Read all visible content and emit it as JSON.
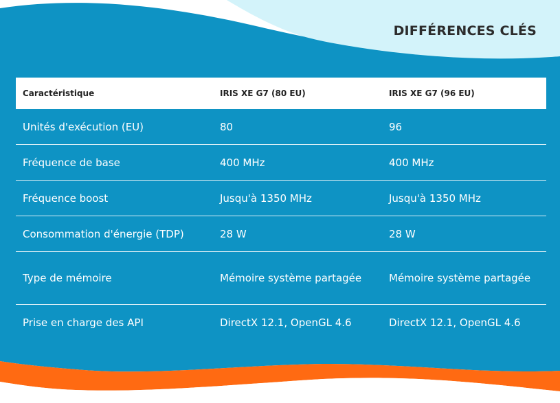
{
  "heading": "DIFFÉRENCES CLÉS",
  "colors": {
    "primary_blue": "#0e93c4",
    "light_blue": "#d3f3fa",
    "orange": "#ff6a12",
    "heading_text": "#2c2c2c"
  },
  "table": {
    "headers": [
      "Caractéristique",
      "IRIS XE G7 (80 EU)",
      "IRIS XE G7 (96 EU)"
    ],
    "rows": [
      [
        "Unités d'exécution (EU)",
        "80",
        "96"
      ],
      [
        "Fréquence de base",
        "400 MHz",
        "400 MHz"
      ],
      [
        "Fréquence boost",
        "Jusqu'à 1350 MHz",
        "Jusqu'à 1350 MHz"
      ],
      [
        "Consommation d'énergie (TDP)",
        "28 W",
        "28 W"
      ],
      [
        "Type de mémoire",
        "Mémoire système partagée",
        "Mémoire système partagée"
      ],
      [
        "Prise en charge des API",
        "DirectX 12.1, OpenGL 4.6",
        "DirectX 12.1, OpenGL 4.6"
      ]
    ]
  }
}
